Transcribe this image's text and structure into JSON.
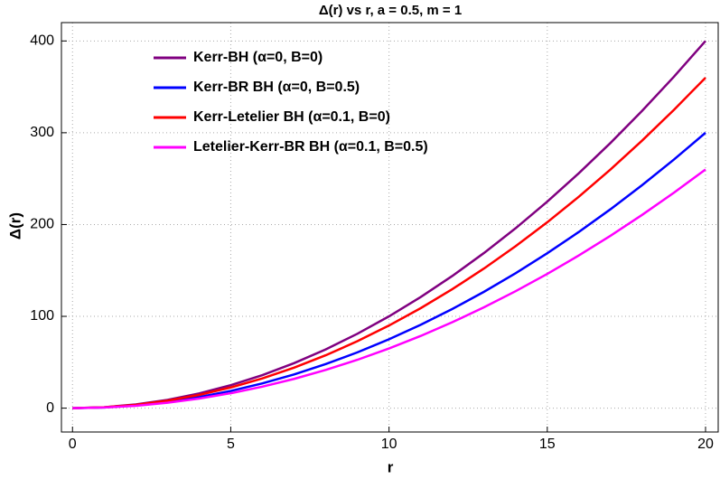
{
  "chart_data": {
    "type": "line",
    "title": "Δ(r) vs r, a = 0.5,  m = 1",
    "x_label": "r",
    "y_label": "Δ(r)",
    "x": [
      0,
      1,
      2,
      3,
      4,
      5,
      6,
      7,
      8,
      9,
      10,
      11,
      12,
      13,
      14,
      15,
      16,
      17,
      18,
      19,
      20
    ],
    "series": [
      {
        "name": "Kerr-BH (α=0, B=0)",
        "color": "#800080",
        "values": [
          0,
          1,
          4,
          9,
          16,
          25,
          36,
          49,
          64,
          81,
          100,
          121,
          144,
          169,
          196,
          225,
          256,
          289,
          324,
          361,
          400
        ]
      },
      {
        "name": "Kerr-BR BH (α=0, B=0.5)",
        "color": "#0000ff",
        "values": [
          0,
          0.75,
          3,
          6.75,
          12,
          18.75,
          27,
          36.75,
          48,
          60.75,
          75,
          90.75,
          108,
          126.75,
          147,
          168.75,
          192,
          216.75,
          243,
          270.75,
          300
        ]
      },
      {
        "name": "Kerr-Letelier BH (α=0.1, B=0)",
        "color": "#ff0000",
        "values": [
          0,
          0.9,
          3.6,
          8.1,
          14.4,
          22.5,
          32.4,
          44.1,
          57.6,
          72.9,
          90,
          108.9,
          129.6,
          152.1,
          176.4,
          202.5,
          230.4,
          260.1,
          291.6,
          324.9,
          360
        ]
      },
      {
        "name": "Letelier-Kerr-BR BH (α=0.1, B=0.5)",
        "color": "#ff00ff",
        "values": [
          0,
          0.65,
          2.6,
          5.85,
          10.4,
          16.25,
          23.4,
          31.85,
          41.6,
          52.65,
          65,
          78.65,
          93.6,
          109.85,
          127.4,
          146.25,
          166.4,
          187.85,
          210.6,
          234.65,
          260
        ]
      }
    ],
    "xlim": [
      -0.35,
      20.4
    ],
    "ylim": [
      -26,
      420
    ],
    "xticks": [
      0,
      5,
      10,
      15,
      20
    ],
    "yticks": [
      0,
      100,
      200,
      300,
      400
    ],
    "grid": true,
    "legend_position": "upper-left"
  }
}
